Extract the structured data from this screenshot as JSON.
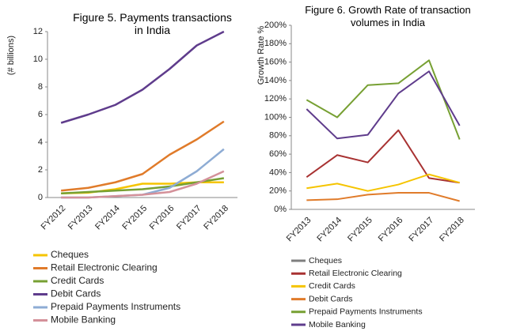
{
  "chart_data": [
    {
      "type": "line",
      "title": "Figure 5. Payments transactions in India",
      "y_label": "(# billions)",
      "categories": [
        "FY2012",
        "FY2013",
        "FY2014",
        "FY2015",
        "FY2016",
        "FY2017",
        "FY2018"
      ],
      "ylim": [
        0,
        12
      ],
      "yticks": [
        0,
        2,
        4,
        6,
        8,
        10,
        12
      ],
      "series": [
        {
          "name": "Cheques",
          "color": "#f5c400",
          "values": [
            0.3,
            0.35,
            0.6,
            1.0,
            1.0,
            1.1,
            1.1
          ]
        },
        {
          "name": "Retail Electronic Clearing",
          "color": "#e07b2a",
          "values": [
            0.5,
            0.7,
            1.1,
            1.7,
            3.1,
            4.2,
            5.5
          ]
        },
        {
          "name": "Credit Cards",
          "color": "#77a033",
          "values": [
            0.3,
            0.4,
            0.5,
            0.6,
            0.8,
            1.1,
            1.4
          ]
        },
        {
          "name": "Debit Cards",
          "color": "#5f3c8c",
          "values": [
            5.4,
            6.0,
            6.7,
            7.8,
            9.3,
            11.0,
            12.0
          ]
        },
        {
          "name": "Prepaid Payments Instruments",
          "color": "#8eacd4",
          "values": [
            0.0,
            0.0,
            0.1,
            0.2,
            0.7,
            1.9,
            3.5
          ]
        },
        {
          "name": "Mobile Banking",
          "color": "#d4919a",
          "values": [
            0.0,
            0.0,
            0.1,
            0.2,
            0.4,
            1.0,
            1.9
          ]
        }
      ]
    },
    {
      "type": "line",
      "title": "Figure 6. Growth Rate of transaction volumes in India",
      "y_label": "Growth Rate %",
      "categories": [
        "FY2013",
        "FY2014",
        "FY2015",
        "FY2016",
        "FY2017",
        "FY2018"
      ],
      "ylim": [
        0,
        200
      ],
      "yticks": [
        {
          "value": 0,
          "label": "0%"
        },
        {
          "value": 20,
          "label": "20%"
        },
        {
          "value": 40,
          "label": "40%"
        },
        {
          "value": 60,
          "label": "60%"
        },
        {
          "value": 80,
          "label": "80%"
        },
        {
          "value": 100,
          "label": "100%"
        },
        {
          "value": 120,
          "label": "120%"
        },
        {
          "value": 140,
          "label": "140%"
        },
        {
          "value": 160,
          "label": "160%"
        },
        {
          "value": 180,
          "label": "180%"
        },
        {
          "value": 200,
          "label": "200%"
        }
      ],
      "series": [
        {
          "name": "Cheques",
          "color": "#7f7f7f",
          "values": [
            null,
            null,
            null,
            null,
            null,
            null
          ]
        },
        {
          "name": "Retail Electronic Clearing",
          "color": "#a83232",
          "values": [
            35,
            59,
            51,
            86,
            34,
            29
          ]
        },
        {
          "name": "Credit Cards",
          "color": "#f5c400",
          "values": [
            23,
            28,
            20,
            27,
            38,
            29
          ]
        },
        {
          "name": "Debit Cards",
          "color": "#e07b2a",
          "values": [
            10,
            11,
            16,
            18,
            18,
            9
          ]
        },
        {
          "name": "Prepaid Payments Instruments",
          "color": "#77a033",
          "values": [
            119,
            100,
            135,
            137,
            162,
            76
          ]
        },
        {
          "name": "Mobile Banking",
          "color": "#5f3c8c",
          "values": [
            109,
            77,
            81,
            126,
            150,
            91
          ]
        }
      ]
    }
  ]
}
